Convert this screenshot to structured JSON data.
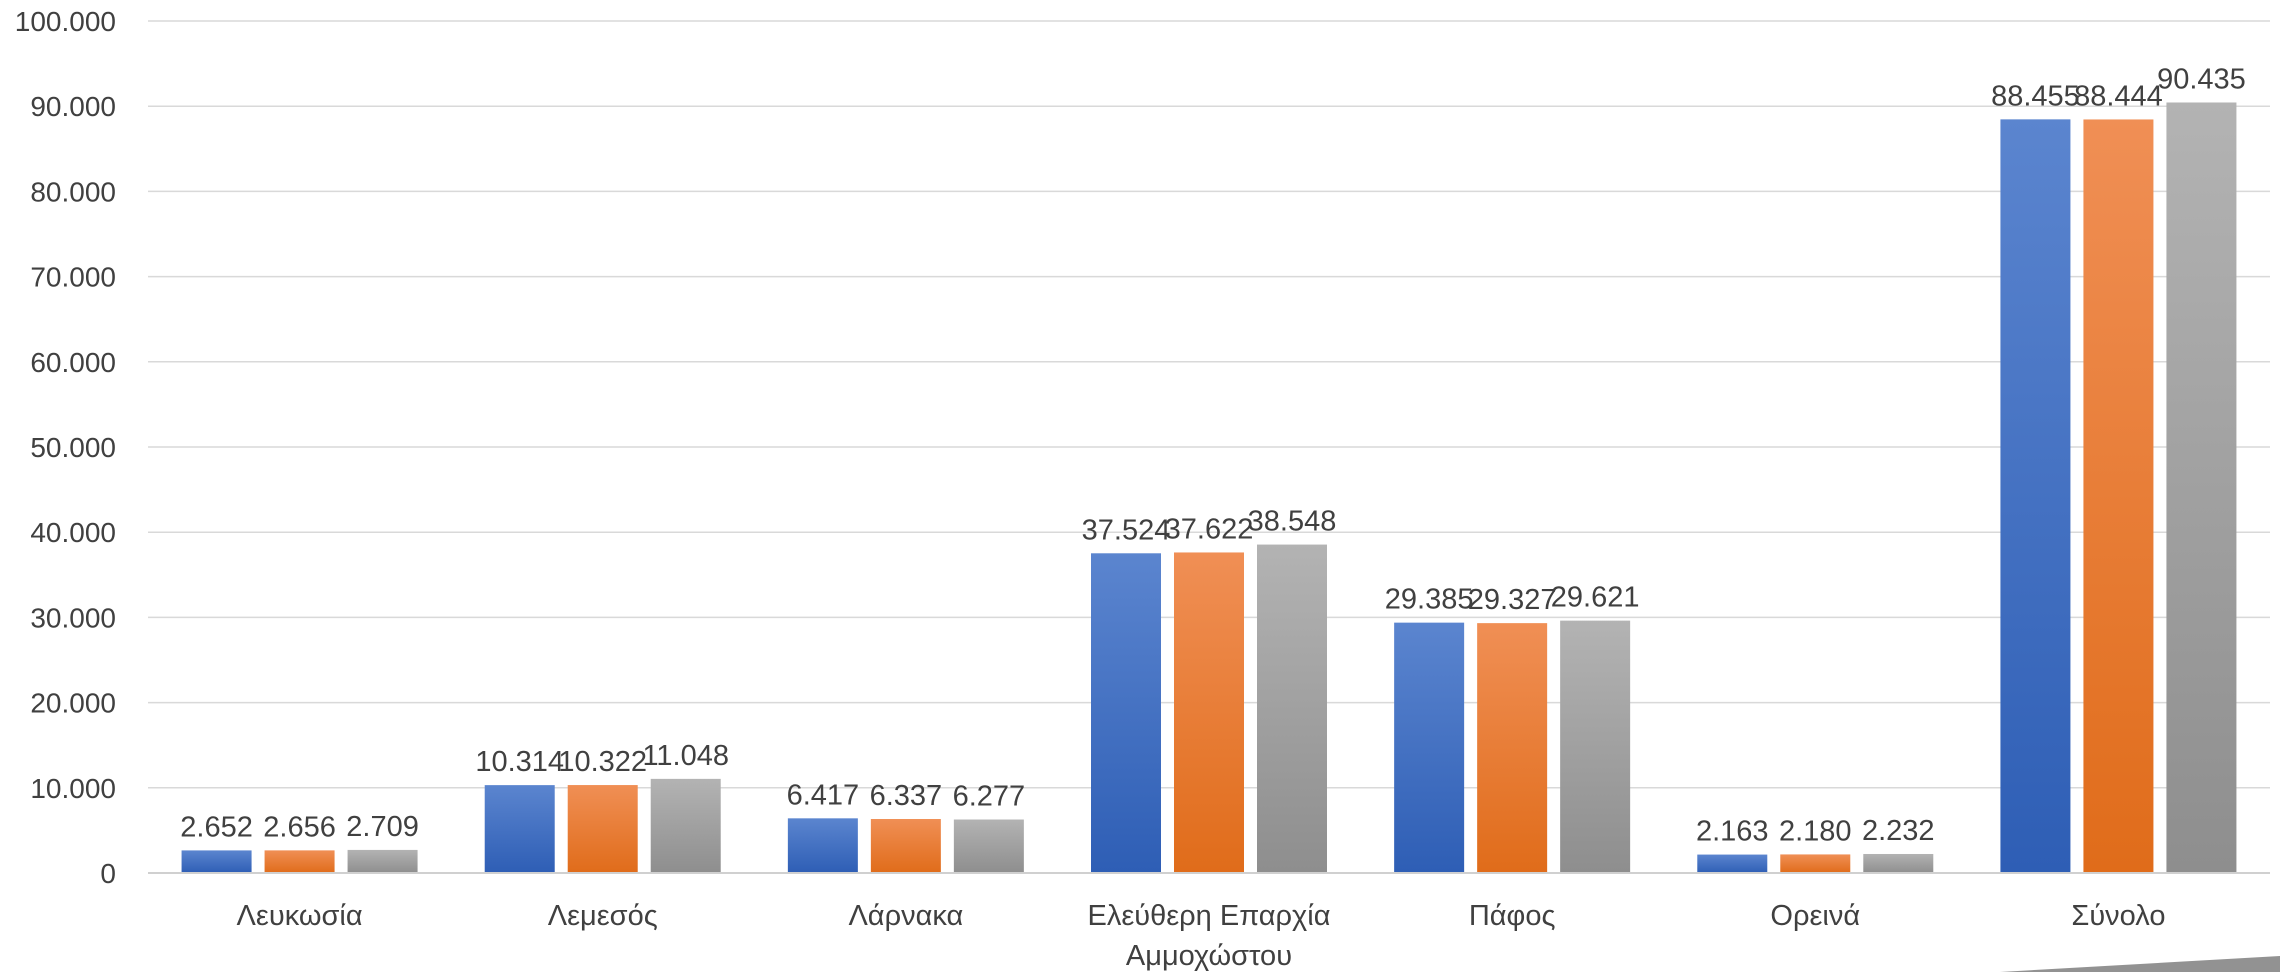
{
  "chart_data": {
    "type": "bar",
    "title": "",
    "xlabel": "",
    "ylabel": "",
    "ylim": [
      0,
      100000
    ],
    "yticks": [
      0,
      10000,
      20000,
      30000,
      40000,
      50000,
      60000,
      70000,
      80000,
      90000,
      100000
    ],
    "ytick_labels": [
      "0",
      "10.000",
      "20.000",
      "30.000",
      "40.000",
      "50.000",
      "60.000",
      "70.000",
      "80.000",
      "90.000",
      "100.000"
    ],
    "grid": true,
    "legend": "none",
    "categories": [
      [
        "Λευκωσία"
      ],
      [
        "Λεμεσός"
      ],
      [
        "Λάρνακα"
      ],
      [
        "Ελεύθερη Επαρχία",
        "Αμμοχώστου"
      ],
      [
        "Πάφος"
      ],
      [
        "Ορεινά"
      ],
      [
        "Σύνολο"
      ]
    ],
    "series": [
      {
        "color": "#4472C4",
        "values": [
          2652,
          10314,
          6417,
          37524,
          29385,
          2163,
          88455
        ],
        "labels": [
          "2.652",
          "10.314",
          "6.417",
          "37.524",
          "29.385",
          "2.163",
          "88.455"
        ]
      },
      {
        "color": "#ED7D31",
        "values": [
          2656,
          10322,
          6337,
          37622,
          29327,
          2180,
          88444
        ],
        "labels": [
          "2.656",
          "10.322",
          "6.337",
          "37.622",
          "29.327",
          "2.180",
          "88.444"
        ]
      },
      {
        "color": "#A5A5A5",
        "values": [
          2709,
          11048,
          6277,
          38548,
          29621,
          2232,
          90435
        ],
        "labels": [
          "2.709",
          "11.048",
          "6.277",
          "38.548",
          "29.621",
          "2.232",
          "90.435"
        ]
      }
    ]
  }
}
